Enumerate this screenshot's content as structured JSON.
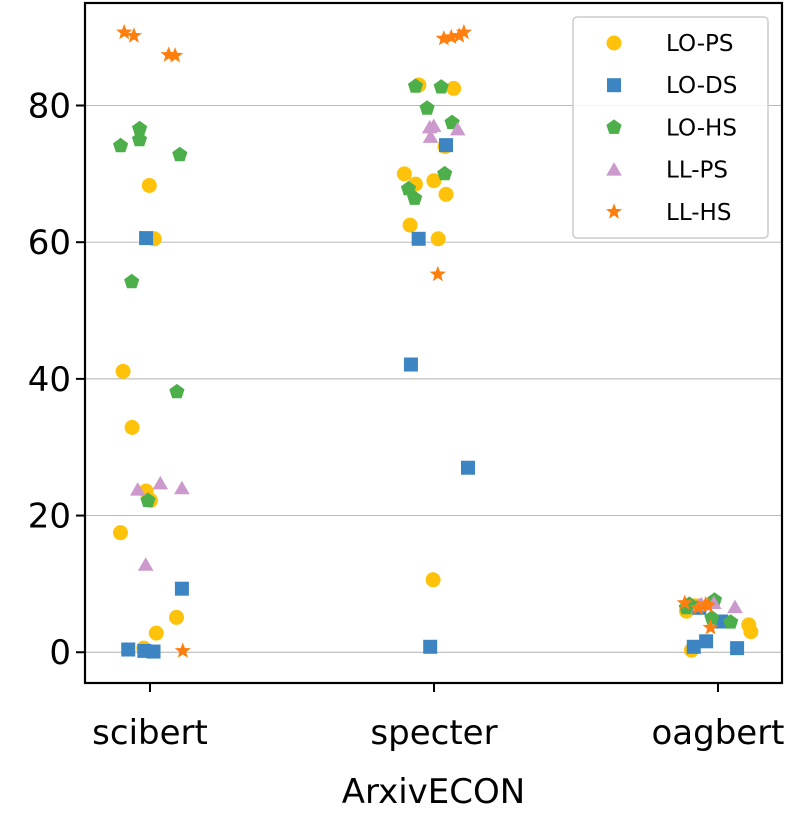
{
  "chart_data": {
    "type": "scatter",
    "title": "",
    "xlabel": "ArxivECON",
    "ylabel": "",
    "categories": [
      "scibert",
      "specter",
      "oagbert"
    ],
    "ylim": [
      -4.5,
      95
    ],
    "yticks": [
      0,
      20,
      40,
      60,
      80
    ],
    "grid": "y",
    "legend_position": "top-right",
    "series": [
      {
        "name": "LO-PS",
        "color": "#FFC20A",
        "marker": "circle",
        "points": [
          {
            "x": "scibert",
            "y": 68.3
          },
          {
            "x": "scibert",
            "y": 60.5
          },
          {
            "x": "scibert",
            "y": 41.1
          },
          {
            "x": "scibert",
            "y": 32.9
          },
          {
            "x": "scibert",
            "y": 23.6
          },
          {
            "x": "scibert",
            "y": 22.2
          },
          {
            "x": "scibert",
            "y": 17.5
          },
          {
            "x": "scibert",
            "y": 5.1
          },
          {
            "x": "scibert",
            "y": 2.8
          },
          {
            "x": "scibert",
            "y": 0.6
          },
          {
            "x": "specter",
            "y": 83.0
          },
          {
            "x": "specter",
            "y": 82.5
          },
          {
            "x": "specter",
            "y": 74.0
          },
          {
            "x": "specter",
            "y": 70.0
          },
          {
            "x": "specter",
            "y": 69.0
          },
          {
            "x": "specter",
            "y": 68.5
          },
          {
            "x": "specter",
            "y": 67.0
          },
          {
            "x": "specter",
            "y": 62.5
          },
          {
            "x": "specter",
            "y": 60.5
          },
          {
            "x": "specter",
            "y": 10.6
          },
          {
            "x": "oagbert",
            "y": 6.8
          },
          {
            "x": "oagbert",
            "y": 6.0
          },
          {
            "x": "oagbert",
            "y": 4.0
          },
          {
            "x": "oagbert",
            "y": 3.0
          },
          {
            "x": "oagbert",
            "y": 0.3
          }
        ]
      },
      {
        "name": "LO-DS",
        "color": "#3C84C2",
        "marker": "square",
        "points": [
          {
            "x": "scibert",
            "y": 60.6
          },
          {
            "x": "scibert",
            "y": 9.3
          },
          {
            "x": "scibert",
            "y": 0.4
          },
          {
            "x": "scibert",
            "y": 0.2
          },
          {
            "x": "scibert",
            "y": 0.1
          },
          {
            "x": "specter",
            "y": 74.2
          },
          {
            "x": "specter",
            "y": 60.5
          },
          {
            "x": "specter",
            "y": 42.1
          },
          {
            "x": "specter",
            "y": 27.0
          },
          {
            "x": "specter",
            "y": 0.8
          },
          {
            "x": "oagbert",
            "y": 6.5
          },
          {
            "x": "oagbert",
            "y": 4.5
          },
          {
            "x": "oagbert",
            "y": 1.6
          },
          {
            "x": "oagbert",
            "y": 0.8
          },
          {
            "x": "oagbert",
            "y": 0.6
          }
        ]
      },
      {
        "name": "LO-HS",
        "color": "#4DAF4A",
        "marker": "pentagon",
        "points": [
          {
            "x": "scibert",
            "y": 76.6
          },
          {
            "x": "scibert",
            "y": 75.0
          },
          {
            "x": "scibert",
            "y": 74.1
          },
          {
            "x": "scibert",
            "y": 72.8
          },
          {
            "x": "scibert",
            "y": 54.2
          },
          {
            "x": "scibert",
            "y": 38.1
          },
          {
            "x": "scibert",
            "y": 22.2
          },
          {
            "x": "specter",
            "y": 82.8
          },
          {
            "x": "specter",
            "y": 82.7
          },
          {
            "x": "specter",
            "y": 79.6
          },
          {
            "x": "specter",
            "y": 77.5
          },
          {
            "x": "specter",
            "y": 70.0
          },
          {
            "x": "specter",
            "y": 67.8
          },
          {
            "x": "specter",
            "y": 66.4
          },
          {
            "x": "oagbert",
            "y": 7.6
          },
          {
            "x": "oagbert",
            "y": 7.0
          },
          {
            "x": "oagbert",
            "y": 6.5
          },
          {
            "x": "oagbert",
            "y": 5.0
          },
          {
            "x": "oagbert",
            "y": 4.4
          }
        ]
      },
      {
        "name": "LL-PS",
        "color": "#CC99CC",
        "marker": "triangle",
        "points": [
          {
            "x": "scibert",
            "y": 24.7
          },
          {
            "x": "scibert",
            "y": 24.0
          },
          {
            "x": "scibert",
            "y": 23.8
          },
          {
            "x": "scibert",
            "y": 12.8
          },
          {
            "x": "specter",
            "y": 77.0
          },
          {
            "x": "specter",
            "y": 76.8
          },
          {
            "x": "specter",
            "y": 76.5
          },
          {
            "x": "specter",
            "y": 75.4
          },
          {
            "x": "oagbert",
            "y": 7.2
          },
          {
            "x": "oagbert",
            "y": 7.0
          },
          {
            "x": "oagbert",
            "y": 6.9
          },
          {
            "x": "oagbert",
            "y": 6.6
          }
        ]
      },
      {
        "name": "LL-HS",
        "color": "#FF7F0E",
        "marker": "star",
        "points": [
          {
            "x": "scibert",
            "y": 90.7
          },
          {
            "x": "scibert",
            "y": 90.2
          },
          {
            "x": "scibert",
            "y": 87.4
          },
          {
            "x": "scibert",
            "y": 87.3
          },
          {
            "x": "scibert",
            "y": 0.2
          },
          {
            "x": "specter",
            "y": 90.7
          },
          {
            "x": "specter",
            "y": 90.2
          },
          {
            "x": "specter",
            "y": 90.0
          },
          {
            "x": "specter",
            "y": 89.8
          },
          {
            "x": "specter",
            "y": 55.3
          },
          {
            "x": "oagbert",
            "y": 7.2
          },
          {
            "x": "oagbert",
            "y": 7.0
          },
          {
            "x": "oagbert",
            "y": 6.8
          },
          {
            "x": "oagbert",
            "y": 6.5
          },
          {
            "x": "oagbert",
            "y": 3.6
          }
        ]
      }
    ]
  }
}
